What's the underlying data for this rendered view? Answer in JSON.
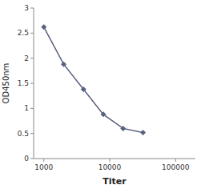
{
  "chart_data": {
    "type": "line",
    "xlabel": "Titer",
    "ylabel": "OD450nm",
    "x": [
      1000,
      2000,
      4000,
      8000,
      16000,
      32000
    ],
    "values": [
      2.62,
      1.88,
      1.38,
      0.88,
      0.6,
      0.52
    ],
    "color": "#5a6080",
    "marker": "diamond",
    "log": "x",
    "xlim": [
      700,
      200000
    ],
    "ylim": [
      0,
      3
    ],
    "xticks": [
      1000,
      10000,
      100000
    ],
    "yticks": [
      0,
      0.5,
      1,
      1.5,
      2,
      2.5,
      3
    ],
    "grid": false
  }
}
